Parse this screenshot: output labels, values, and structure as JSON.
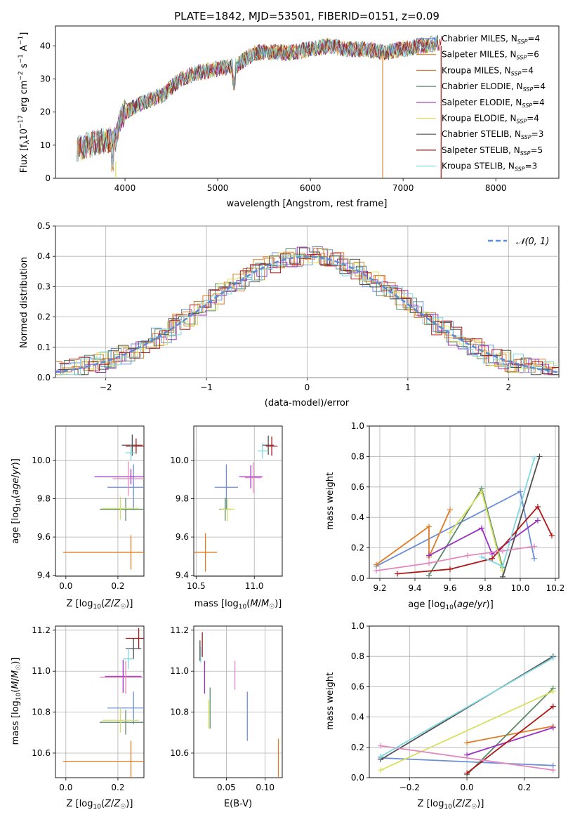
{
  "colors": [
    "#6a8fd8",
    "#e07b24",
    "#d4843a",
    "#5a8a6a",
    "#9b30c0",
    "#d8e060",
    "#505050",
    "#b01818",
    "#80d8e0"
  ],
  "chart_data": [
    {
      "type": "line",
      "title": "PLATE=1842, MJD=53501, FIBERID=0151, z=0.09",
      "xlabel": "wavelength [Angstrom, rest frame]",
      "ylabel": "Flux [f_λ 10^-17 erg cm^-2 s^-1 A^-1]",
      "xlim": [
        3250,
        8680
      ],
      "ylim": [
        0,
        46
      ],
      "xticks": [
        4000,
        5000,
        6000,
        7000,
        8000
      ],
      "yticks": [
        0,
        10,
        20,
        30,
        40
      ],
      "legend_position": "upper right",
      "series": [
        {
          "name": "Chabrier MILES, N_SSP=4",
          "color": "#6a8fd8"
        },
        {
          "name": "Salpeter MILES, N_SSP=6",
          "color": "#e07b24"
        },
        {
          "name": "Kroupa MILES, N_SSP=4",
          "color": "#d4843a"
        },
        {
          "name": "Chabrier ELODIE, N_SSP=4",
          "color": "#5a8a6a"
        },
        {
          "name": "Salpeter ELODIE, N_SSP=4",
          "color": "#9b30c0"
        },
        {
          "name": "Kroupa ELODIE, N_SSP=4",
          "color": "#d8e060"
        },
        {
          "name": "Chabrier STELIB, N_SSP=3",
          "color": "#505050"
        },
        {
          "name": "Salpeter STELIB, N_SSP=5",
          "color": "#b01818"
        },
        {
          "name": "Kroupa STELIB, N_SSP=3",
          "color": "#80d8e0"
        }
      ],
      "continuum": {
        "x": [
          3500,
          3700,
          3900,
          3950,
          4000,
          4200,
          4400,
          4600,
          4800,
          5000,
          5200,
          5400,
          5600,
          5800,
          6000,
          6200,
          6400,
          6600,
          6800,
          7000,
          7200,
          7400
        ],
        "y": [
          9,
          11,
          12,
          18,
          20,
          23,
          25,
          30,
          32,
          33,
          34,
          38,
          38,
          38,
          39,
          40,
          39,
          39,
          38,
          39,
          40,
          41
        ]
      }
    },
    {
      "type": "line",
      "xlabel": "(data-model)/error",
      "ylabel": "Normed distribution",
      "xlim": [
        -2.5,
        2.5
      ],
      "ylim": [
        0,
        0.5
      ],
      "xticks": [
        -2,
        -1,
        0,
        1,
        2
      ],
      "yticks": [
        0.0,
        0.1,
        0.2,
        0.3,
        0.4,
        0.5
      ],
      "legend": "𝒩(0,1)",
      "normal_curve": {
        "mean": 0,
        "std": 1
      }
    },
    {
      "type": "scatter",
      "xlabel": "Z [log10(Z/Z☉)]",
      "ylabel": "age  [log10(age/yr)]",
      "xlim": [
        -0.04,
        0.3
      ],
      "ylim": [
        9.395,
        10.18
      ],
      "xticks": [
        0.0,
        0.2
      ],
      "yticks": [
        9.4,
        9.6,
        9.8,
        10.0
      ],
      "points": [
        {
          "x": 0.26,
          "xerr": 0.1,
          "y": 9.86,
          "yerr": 0.12,
          "color": "#6a8fd8"
        },
        {
          "x": 0.25,
          "xerr": 0.26,
          "y": 9.52,
          "yerr": 0.09,
          "color": "#e07b24"
        },
        {
          "x": 0.23,
          "xerr": 0.1,
          "y": 9.745,
          "yerr": 0.06,
          "color": "#5a8a6a"
        },
        {
          "x": 0.25,
          "xerr": 0.14,
          "y": 9.915,
          "yerr": 0.04,
          "color": "#9b30c0"
        },
        {
          "x": 0.21,
          "xerr": 0.07,
          "y": 9.75,
          "yerr": 0.06,
          "color": "#d8e060"
        },
        {
          "x": 0.255,
          "xerr": 0.04,
          "y": 10.08,
          "yerr": 0.055,
          "color": "#505050"
        },
        {
          "x": 0.27,
          "xerr": 0.04,
          "y": 10.075,
          "yerr": 0.04,
          "color": "#b01818"
        },
        {
          "x": 0.24,
          "xerr": 0.06,
          "y": 9.905,
          "yerr": 0.09,
          "color": "#e389c0"
        },
        {
          "x": 0.25,
          "xerr": 0.02,
          "y": 10.04,
          "yerr": 0.04,
          "color": "#80d8e0"
        }
      ]
    },
    {
      "type": "scatter",
      "xlabel": "mass [log10(M/M☉)]",
      "xlim": [
        10.48,
        11.24
      ],
      "ylim": [
        9.395,
        10.18
      ],
      "xticks": [
        10.5,
        11.0
      ],
      "yticks": [
        9.4,
        9.6,
        9.8,
        10.0
      ],
      "points": [
        {
          "x": 10.76,
          "xerr": 0.1,
          "y": 9.86,
          "yerr": 0.12,
          "color": "#6a8fd8"
        },
        {
          "x": 10.58,
          "xerr": 0.1,
          "y": 9.52,
          "yerr": 0.1,
          "color": "#e07b24"
        },
        {
          "x": 10.75,
          "xerr": 0.05,
          "y": 9.745,
          "yerr": 0.06,
          "color": "#5a8a6a"
        },
        {
          "x": 10.97,
          "xerr": 0.1,
          "y": 9.915,
          "yerr": 0.06,
          "color": "#9b30c0"
        },
        {
          "x": 10.77,
          "xerr": 0.06,
          "y": 9.745,
          "yerr": 0.06,
          "color": "#d8e060"
        },
        {
          "x": 11.12,
          "xerr": 0.05,
          "y": 10.08,
          "yerr": 0.05,
          "color": "#505050"
        },
        {
          "x": 11.15,
          "xerr": 0.05,
          "y": 10.075,
          "yerr": 0.05,
          "color": "#b01818"
        },
        {
          "x": 10.99,
          "xerr": 0.07,
          "y": 9.91,
          "yerr": 0.08,
          "color": "#e389c0"
        },
        {
          "x": 11.07,
          "xerr": 0.04,
          "y": 10.05,
          "yerr": 0.04,
          "color": "#80d8e0"
        }
      ]
    },
    {
      "type": "line",
      "xlabel": "age  [log10(age/yr)]",
      "ylabel": "mass weight",
      "xlim": [
        9.14,
        10.22
      ],
      "ylim": [
        0,
        1.0
      ],
      "xticks": [
        9.2,
        9.4,
        9.6,
        9.8,
        10.0,
        10.2
      ],
      "yticks": [
        0.0,
        0.2,
        0.4,
        0.6,
        0.8,
        1.0
      ],
      "series": [
        {
          "color": "#6a8fd8",
          "x": [
            9.18,
            10.0,
            10.08
          ],
          "y": [
            0.08,
            0.57,
            0.13
          ]
        },
        {
          "color": "#e07b24",
          "x": [
            9.18,
            9.48,
            9.48,
            9.6
          ],
          "y": [
            0.09,
            0.34,
            0.14,
            0.45
          ]
        },
        {
          "color": "#5a8a6a",
          "x": [
            9.48,
            9.78,
            9.9
          ],
          "y": [
            0.02,
            0.59,
            0.07
          ]
        },
        {
          "color": "#9b30c0",
          "x": [
            9.48,
            9.78,
            9.84,
            10.1
          ],
          "y": [
            0.15,
            0.33,
            0.16,
            0.38
          ]
        },
        {
          "color": "#d8e060",
          "x": [
            9.6,
            9.78,
            9.9
          ],
          "y": [
            0.3,
            0.57,
            0.05
          ]
        },
        {
          "color": "#505050",
          "x": [
            9.9,
            10.11
          ],
          "y": [
            0.01,
            0.8
          ]
        },
        {
          "color": "#b01818",
          "x": [
            9.3,
            9.6,
            9.84,
            10.1,
            10.18
          ],
          "y": [
            0.03,
            0.06,
            0.13,
            0.47,
            0.28
          ]
        },
        {
          "color": "#e389c0",
          "x": [
            9.18,
            9.48,
            9.7,
            9.9,
            10.08
          ],
          "y": [
            0.05,
            0.1,
            0.15,
            0.18,
            0.21
          ]
        },
        {
          "color": "#80d8e0",
          "x": [
            9.78,
            9.9,
            10.08
          ],
          "y": [
            0.14,
            0.08,
            0.79
          ]
        }
      ]
    },
    {
      "type": "scatter",
      "xlabel": "Z [log10(Z/Z☉)]",
      "ylabel": "mass [log10(M/M☉)]",
      "xlim": [
        -0.04,
        0.3
      ],
      "ylim": [
        10.48,
        11.22
      ],
      "xticks": [
        0.0,
        0.2
      ],
      "yticks": [
        10.6,
        10.8,
        11.0,
        11.2
      ],
      "points": [
        {
          "x": 0.26,
          "xerr": 0.1,
          "y": 10.82,
          "yerr": 0.08,
          "color": "#6a8fd8"
        },
        {
          "x": 0.25,
          "xerr": 0.26,
          "y": 10.56,
          "yerr": 0.1,
          "color": "#e07b24"
        },
        {
          "x": 0.23,
          "xerr": 0.1,
          "y": 10.75,
          "yerr": 0.06,
          "color": "#5a8a6a"
        },
        {
          "x": 0.22,
          "xerr": 0.07,
          "y": 10.975,
          "yerr": 0.08,
          "color": "#9b30c0"
        },
        {
          "x": 0.21,
          "xerr": 0.07,
          "y": 10.76,
          "yerr": 0.06,
          "color": "#d8e060"
        },
        {
          "x": 0.26,
          "xerr": 0.03,
          "y": 11.11,
          "yerr": 0.05,
          "color": "#505050"
        },
        {
          "x": 0.28,
          "xerr": 0.05,
          "y": 11.16,
          "yerr": 0.05,
          "color": "#b01818"
        },
        {
          "x": 0.23,
          "xerr": 0.1,
          "y": 10.97,
          "yerr": 0.08,
          "color": "#e389c0"
        },
        {
          "x": 0.24,
          "xerr": 0.02,
          "y": 11.06,
          "yerr": 0.05,
          "color": "#80d8e0"
        }
      ]
    },
    {
      "type": "scatter",
      "xlabel": "E(B-V)",
      "xlim": [
        0.008,
        0.122
      ],
      "ylim": [
        10.48,
        11.22
      ],
      "xticks": [
        0.05,
        0.1
      ],
      "yticks": [
        10.6,
        10.8,
        11.0,
        11.2
      ],
      "points": [
        {
          "x": 0.077,
          "y": 10.78,
          "yerr": 0.12,
          "color": "#6a8fd8"
        },
        {
          "x": 0.117,
          "y": 10.56,
          "yerr": 0.11,
          "color": "#e07b24"
        },
        {
          "x": 0.029,
          "y": 10.82,
          "yerr": 0.1,
          "color": "#5a8a6a"
        },
        {
          "x": 0.022,
          "y": 10.97,
          "yerr": 0.08,
          "color": "#9b30c0"
        },
        {
          "x": 0.027,
          "y": 10.79,
          "yerr": 0.07,
          "color": "#d8e060"
        },
        {
          "x": 0.016,
          "y": 11.1,
          "yerr": 0.05,
          "color": "#505050"
        },
        {
          "x": 0.019,
          "y": 11.13,
          "yerr": 0.06,
          "color": "#b01818"
        },
        {
          "x": 0.061,
          "y": 10.98,
          "yerr": 0.07,
          "color": "#e389c0"
        },
        {
          "x": 0.017,
          "y": 11.08,
          "yerr": 0.04,
          "color": "#80d8e0"
        }
      ]
    },
    {
      "type": "line",
      "xlabel": "Z [log10(Z/Z☉)]",
      "ylabel": "mass weight",
      "xlim": [
        -0.34,
        0.32
      ],
      "ylim": [
        0,
        1.0
      ],
      "xticks": [
        -0.2,
        0.0,
        0.2
      ],
      "yticks": [
        0.0,
        0.2,
        0.4,
        0.6,
        0.8,
        1.0
      ],
      "series": [
        {
          "color": "#6a8fd8",
          "x": [
            -0.3,
            0.3
          ],
          "y": [
            0.13,
            0.08
          ]
        },
        {
          "color": "#e07b24",
          "x": [
            0.0,
            0.3
          ],
          "y": [
            0.23,
            0.34
          ]
        },
        {
          "color": "#5a8a6a",
          "x": [
            0.0,
            0.3
          ],
          "y": [
            0.02,
            0.59
          ]
        },
        {
          "color": "#9b30c0",
          "x": [
            0.0,
            0.3
          ],
          "y": [
            0.15,
            0.33
          ]
        },
        {
          "color": "#d8e060",
          "x": [
            -0.3,
            0.3
          ],
          "y": [
            0.05,
            0.57
          ]
        },
        {
          "color": "#505050",
          "x": [
            -0.3,
            0.3
          ],
          "y": [
            0.12,
            0.8
          ]
        },
        {
          "color": "#b01818",
          "x": [
            0.0,
            0.3
          ],
          "y": [
            0.03,
            0.47
          ]
        },
        {
          "color": "#e389c0",
          "x": [
            -0.3,
            0.3
          ],
          "y": [
            0.21,
            0.05
          ]
        },
        {
          "color": "#80d8e0",
          "x": [
            -0.3,
            0.3
          ],
          "y": [
            0.14,
            0.79
          ]
        }
      ]
    }
  ],
  "text": {
    "p1_title": "PLATE=1842, MJD=53501, FIBERID=0151, z=0.09",
    "p1_xlabel": "wavelength [Angstrom, rest frame]",
    "p2_xlabel": "(data-model)/error",
    "p2_ylabel": "Normed distribution",
    "p2_legend": "𝒩(0, 1)",
    "p5_ylabel": "mass weight",
    "p8_ylabel": "mass weight",
    "p6_ylabel": "mass [log₁₀(M/M☉)]",
    "p7_xlabel": "E(B-V)"
  }
}
